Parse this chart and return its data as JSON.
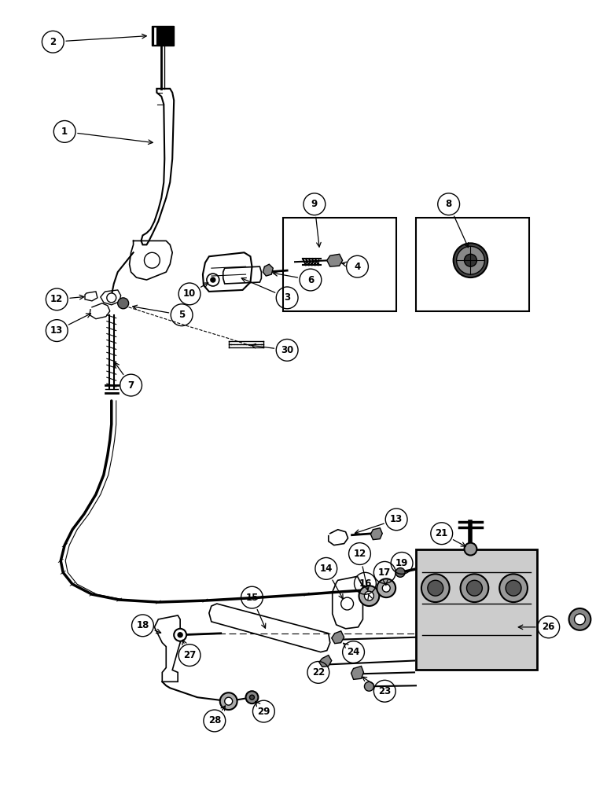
{
  "background_color": "#ffffff",
  "fig_width": 7.72,
  "fig_height": 10.0,
  "dpi": 100
}
